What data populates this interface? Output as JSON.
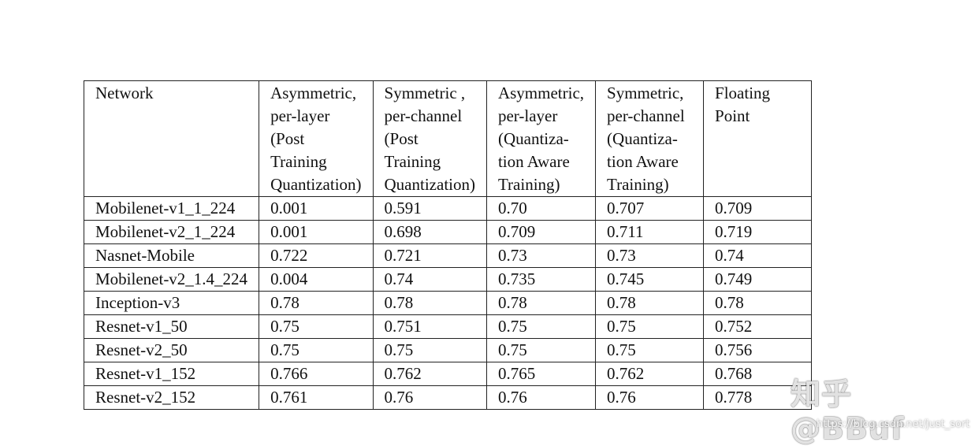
{
  "table": {
    "headers": [
      "Network",
      "Asymmetric, per-layer (Post Training Quantization)",
      "Symmetric , per-channel (Post Training Quantization)",
      "Asymmetric, per-layer (Quantiza- tion Aware Training)",
      "Symmetric, per-channel (Quantiza- tion Aware Training)",
      "Floating Point"
    ],
    "rows": [
      [
        "Mobilenet-v1_1_224",
        "0.001",
        "0.591",
        "0.70",
        "0.707",
        "0.709"
      ],
      [
        "Mobilenet-v2_1_224",
        "0.001",
        "0.698",
        "0.709",
        "0.711",
        "0.719"
      ],
      [
        "Nasnet-Mobile",
        "0.722",
        "0.721",
        "0.73",
        "0.73",
        "0.74"
      ],
      [
        "Mobilenet-v2_1.4_224",
        "0.004",
        "0.74",
        "0.735",
        "0.745",
        "0.749"
      ],
      [
        "Inception-v3",
        "0.78",
        "0.78",
        "0.78",
        "0.78",
        "0.78"
      ],
      [
        "Resnet-v1_50",
        "0.75",
        "0.751",
        "0.75",
        "0.75",
        "0.752"
      ],
      [
        "Resnet-v2_50",
        "0.75",
        "0.75",
        "0.75",
        "0.75",
        "0.756"
      ],
      [
        "Resnet-v1_152",
        "0.766",
        "0.762",
        "0.765",
        "0.762",
        "0.768"
      ],
      [
        "Resnet-v2_152",
        "0.761",
        "0.76",
        "0.76",
        "0.76",
        "0.778"
      ]
    ]
  },
  "watermark": {
    "text": "知乎 @BBuf",
    "url": "https://blog.csdn.net/just_sort"
  }
}
